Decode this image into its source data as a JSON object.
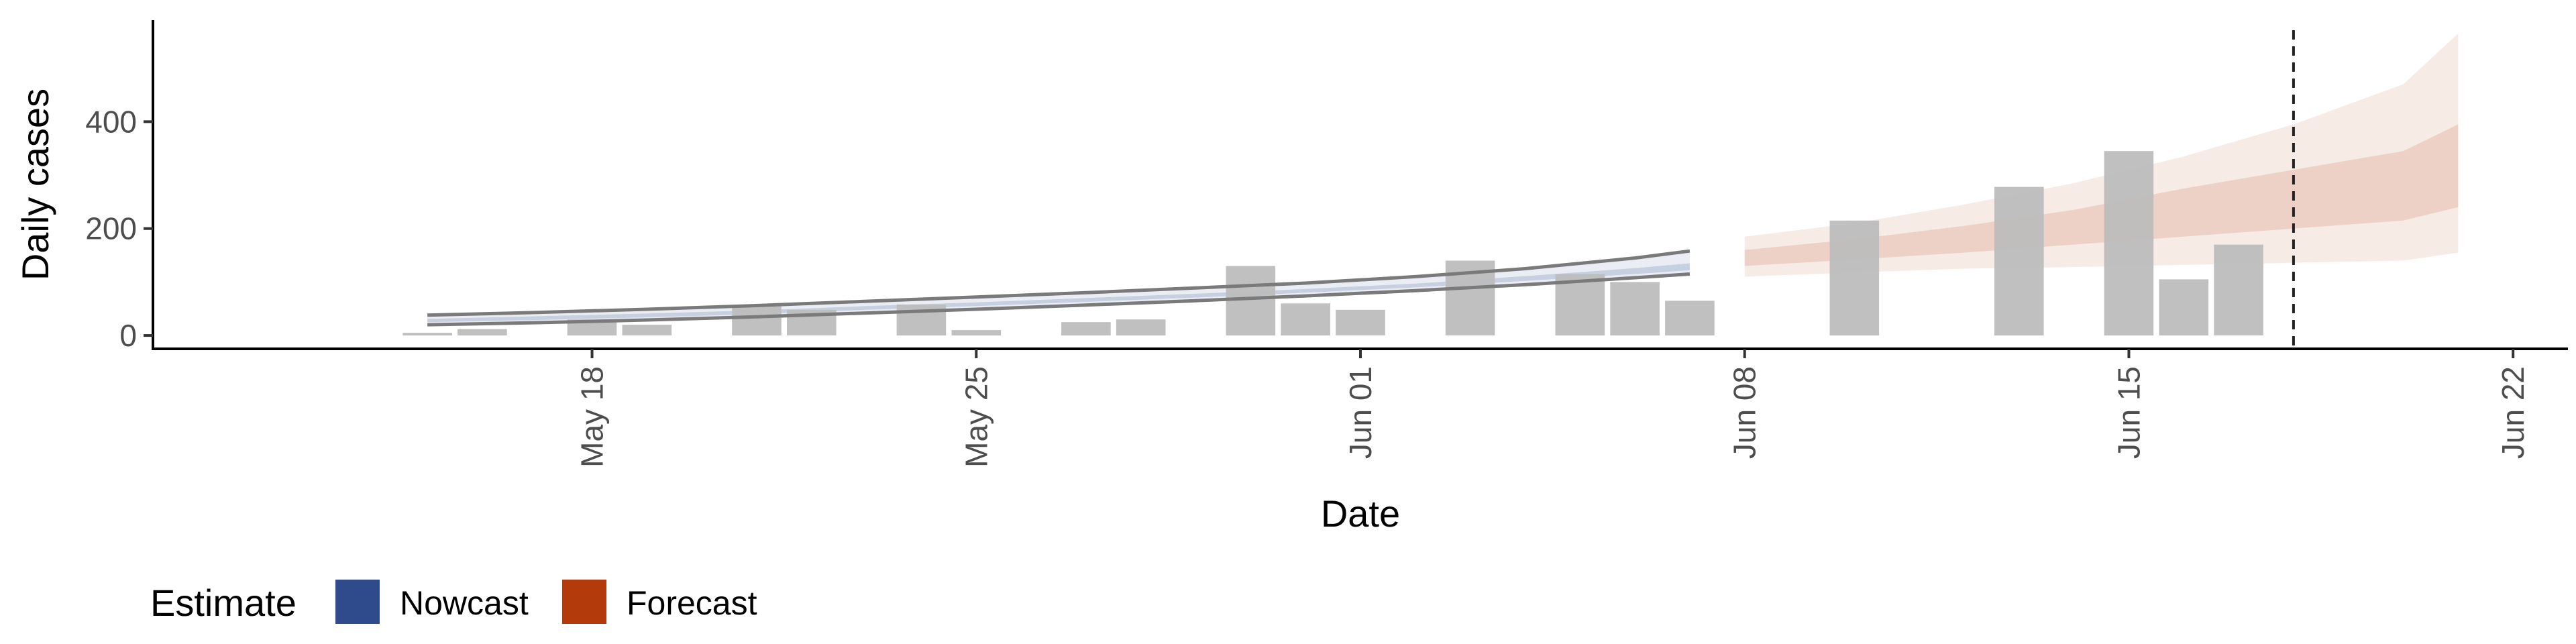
{
  "chart_data": {
    "type": "bar",
    "xlabel": "Date",
    "ylabel": "Daily cases",
    "xlim": [
      "2021-05-10",
      "2021-06-23"
    ],
    "ylim": [
      -25,
      590
    ],
    "x_ticks": [
      "May 18",
      "May 25",
      "Jun 01",
      "Jun 08",
      "Jun 15",
      "Jun 22"
    ],
    "x_tick_dates": [
      "2021-05-18",
      "2021-05-25",
      "2021-06-01",
      "2021-06-08",
      "2021-06-15",
      "2021-06-22"
    ],
    "y_ticks": [
      0,
      200,
      400
    ],
    "grid": false,
    "bar_color": "#bdbdbd",
    "reported_cases": [
      {
        "date": "2021-05-15",
        "value": 5
      },
      {
        "date": "2021-05-16",
        "value": 12
      },
      {
        "date": "2021-05-18",
        "value": 30
      },
      {
        "date": "2021-05-19",
        "value": 20
      },
      {
        "date": "2021-05-21",
        "value": 55
      },
      {
        "date": "2021-05-22",
        "value": 48
      },
      {
        "date": "2021-05-24",
        "value": 58
      },
      {
        "date": "2021-05-25",
        "value": 10
      },
      {
        "date": "2021-05-27",
        "value": 25
      },
      {
        "date": "2021-05-28",
        "value": 30
      },
      {
        "date": "2021-05-30",
        "value": 130
      },
      {
        "date": "2021-05-31",
        "value": 60
      },
      {
        "date": "2021-06-01",
        "value": 48
      },
      {
        "date": "2021-06-03",
        "value": 140
      },
      {
        "date": "2021-06-05",
        "value": 115
      },
      {
        "date": "2021-06-06",
        "value": 100
      },
      {
        "date": "2021-06-07",
        "value": 65
      },
      {
        "date": "2021-06-10",
        "value": 215
      },
      {
        "date": "2021-06-13",
        "value": 278
      },
      {
        "date": "2021-06-15",
        "value": 345
      },
      {
        "date": "2021-06-16",
        "value": 105
      },
      {
        "date": "2021-06-17",
        "value": 170
      }
    ],
    "nowcast": {
      "color": "#2f4b8c",
      "dates": [
        "2021-05-15",
        "2021-05-17",
        "2021-05-19",
        "2021-05-21",
        "2021-05-23",
        "2021-05-25",
        "2021-05-27",
        "2021-05-29",
        "2021-05-31",
        "2021-06-02",
        "2021-06-04",
        "2021-06-06",
        "2021-06-07"
      ],
      "median": [
        28,
        32,
        37,
        43,
        51,
        58,
        66,
        74,
        83,
        93,
        106,
        120,
        128
      ],
      "lower_90": [
        20,
        24,
        29,
        35,
        42,
        49,
        57,
        65,
        74,
        84,
        95,
        108,
        115
      ],
      "upper_90": [
        38,
        43,
        49,
        56,
        64,
        72,
        80,
        89,
        98,
        110,
        125,
        145,
        158
      ],
      "lower_50": [
        25,
        29,
        34,
        40,
        48,
        55,
        63,
        71,
        80,
        90,
        102,
        115,
        122
      ],
      "upper_50": [
        31,
        36,
        41,
        47,
        55,
        62,
        70,
        78,
        87,
        97,
        111,
        126,
        135
      ]
    },
    "forecast": {
      "color": "#b33a0b",
      "dates": [
        "2021-06-08",
        "2021-06-10",
        "2021-06-12",
        "2021-06-14",
        "2021-06-16",
        "2021-06-18",
        "2021-06-20",
        "2021-06-21"
      ],
      "lower_90": [
        110,
        118,
        125,
        128,
        132,
        136,
        140,
        155
      ],
      "upper_90": [
        185,
        210,
        245,
        285,
        335,
        395,
        470,
        565
      ],
      "lower_50": [
        130,
        142,
        155,
        170,
        185,
        200,
        215,
        240
      ],
      "upper_50": [
        160,
        180,
        205,
        235,
        275,
        310,
        345,
        395
      ]
    },
    "vline": {
      "date": "2021-06-18",
      "style": "dashed"
    },
    "legend": {
      "position": "bottom-left",
      "title": "Estimate",
      "items": [
        {
          "label": "Nowcast",
          "color": "#2f4b8c"
        },
        {
          "label": "Forecast",
          "color": "#b33a0b"
        }
      ]
    }
  }
}
